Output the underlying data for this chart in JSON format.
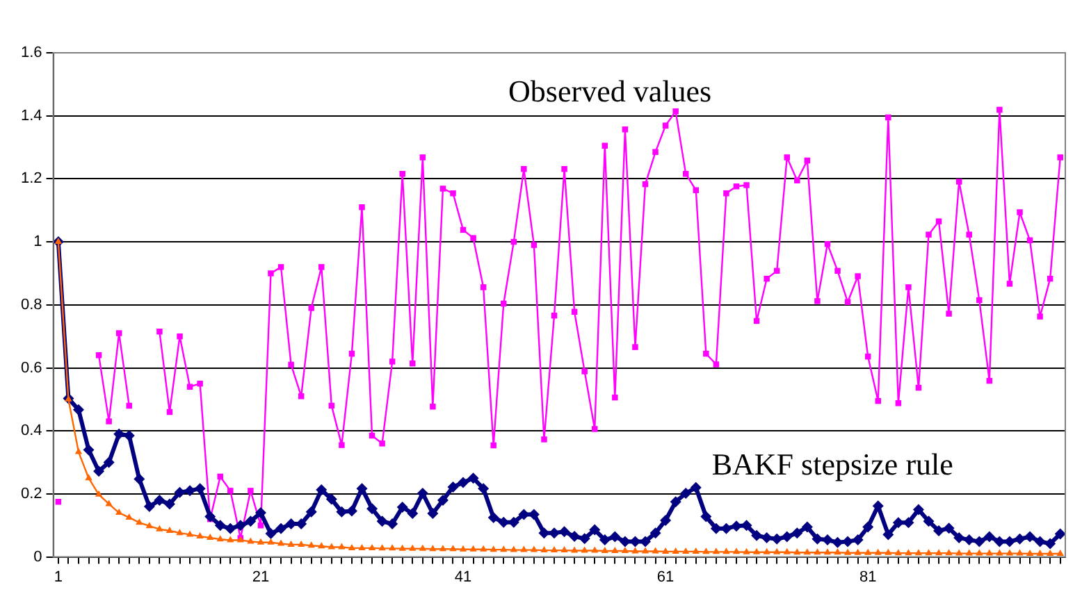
{
  "chart_data": {
    "type": "line",
    "categories": [
      "1",
      null,
      null,
      null,
      null,
      null,
      null,
      null,
      null,
      null,
      null,
      null,
      null,
      null,
      null,
      null,
      null,
      null,
      null,
      null,
      "21",
      null,
      null,
      null,
      null,
      null,
      null,
      null,
      null,
      null,
      null,
      null,
      null,
      null,
      null,
      null,
      null,
      null,
      null,
      null,
      "41",
      null,
      null,
      null,
      null,
      null,
      null,
      null,
      null,
      null,
      null,
      null,
      null,
      null,
      null,
      null,
      null,
      null,
      null,
      null,
      "61",
      null,
      null,
      null,
      null,
      null,
      null,
      null,
      null,
      null,
      null,
      null,
      null,
      null,
      null,
      null,
      null,
      null,
      null,
      null,
      "81",
      null,
      null,
      null,
      null,
      null,
      null,
      null,
      null,
      null,
      null,
      null,
      null,
      null,
      null,
      null,
      null,
      null,
      null,
      null
    ],
    "series": [
      {
        "name": "Observed values",
        "color": "#ff00ff",
        "marker": "square",
        "values": [
          0.175,
          null,
          null,
          null,
          0.64,
          0.43,
          0.71,
          0.48,
          null,
          null,
          0.715,
          0.46,
          0.7,
          0.54,
          0.55,
          0.12,
          0.255,
          0.21,
          0.06,
          0.21,
          0.1,
          0.9,
          0.92,
          0.61,
          0.51,
          0.79,
          0.92,
          0.48,
          0.355,
          0.645,
          1.11,
          0.385,
          0.36,
          0.62,
          1.216,
          0.614,
          1.268,
          0.477,
          1.169,
          1.154,
          1.038,
          1.012,
          0.856,
          0.354,
          0.804,
          1.0,
          1.231,
          0.99,
          0.373,
          0.766,
          1.231,
          0.778,
          0.589,
          0.406,
          1.305,
          0.506,
          1.357,
          0.666,
          1.183,
          1.285,
          1.369,
          1.414,
          1.216,
          1.164,
          0.645,
          0.611,
          1.154,
          1.176,
          1.18,
          0.749,
          0.883,
          0.908,
          1.268,
          1.195,
          1.258,
          0.812,
          0.993,
          0.908,
          0.809,
          0.891,
          0.636,
          0.495,
          1.395,
          0.488,
          0.856,
          0.537,
          1.023,
          1.065,
          0.772,
          1.191,
          1.023,
          0.815,
          0.559,
          1.419,
          0.867,
          1.094,
          1.005,
          0.763,
          0.883,
          1.268
        ]
      },
      {
        "name": "BAKF stepsize rule",
        "color": "#000080",
        "marker": "diamond",
        "values": [
          1.0,
          0.503,
          0.467,
          0.34,
          0.272,
          0.3,
          0.39,
          0.385,
          0.247,
          0.16,
          0.18,
          0.168,
          0.205,
          0.21,
          0.217,
          0.128,
          0.1,
          0.09,
          0.1,
          0.113,
          0.14,
          0.074,
          0.09,
          0.105,
          0.105,
          0.143,
          0.213,
          0.183,
          0.143,
          0.146,
          0.217,
          0.153,
          0.113,
          0.105,
          0.158,
          0.138,
          0.202,
          0.138,
          0.18,
          0.222,
          0.236,
          0.25,
          0.217,
          0.125,
          0.11,
          0.11,
          0.135,
          0.135,
          0.076,
          0.076,
          0.08,
          0.065,
          0.058,
          0.086,
          0.054,
          0.064,
          0.049,
          0.049,
          0.049,
          0.076,
          0.116,
          0.175,
          0.202,
          0.22,
          0.128,
          0.09,
          0.09,
          0.098,
          0.1,
          0.068,
          0.061,
          0.057,
          0.064,
          0.076,
          0.095,
          0.057,
          0.054,
          0.046,
          0.049,
          0.054,
          0.095,
          0.162,
          0.071,
          0.109,
          0.109,
          0.15,
          0.113,
          0.083,
          0.091,
          0.061,
          0.054,
          0.049,
          0.064,
          0.049,
          0.049,
          0.057,
          0.064,
          0.049,
          0.042,
          0.073
        ]
      },
      {
        "color": "#ff6600",
        "marker": "triangle",
        "values": [
          1.0,
          0.5,
          0.333,
          0.25,
          0.198,
          0.168,
          0.14,
          0.125,
          0.109,
          0.098,
          0.088,
          0.083,
          0.076,
          0.071,
          0.065,
          0.061,
          0.056,
          0.053,
          0.053,
          0.049,
          0.046,
          0.046,
          0.042,
          0.039,
          0.039,
          0.036,
          0.034,
          0.031,
          0.031,
          0.028,
          0.028,
          0.028,
          0.027,
          0.027,
          0.026,
          0.026,
          0.026,
          0.025,
          0.025,
          0.025,
          0.024,
          0.024,
          0.024,
          0.023,
          0.023,
          0.022,
          0.022,
          0.022,
          0.021,
          0.021,
          0.021,
          0.02,
          0.02,
          0.02,
          0.019,
          0.019,
          0.019,
          0.018,
          0.018,
          0.018,
          0.017,
          0.017,
          0.017,
          0.017,
          0.016,
          0.016,
          0.016,
          0.016,
          0.015,
          0.015,
          0.015,
          0.015,
          0.015,
          0.014,
          0.014,
          0.014,
          0.014,
          0.014,
          0.013,
          0.013,
          0.013,
          0.013,
          0.013,
          0.012,
          0.012,
          0.012,
          0.012,
          0.012,
          0.012,
          0.011,
          0.011,
          0.011,
          0.011,
          0.011,
          0.011,
          0.011,
          0.01,
          0.01,
          0.01,
          0.01
        ]
      }
    ],
    "ylim": [
      0,
      1.6
    ],
    "yticks": [
      0,
      0.2,
      0.4,
      0.6,
      0.8,
      1,
      1.2,
      1.4,
      1.6
    ],
    "grid": "y",
    "legend": false,
    "line_style": "solid"
  }
}
